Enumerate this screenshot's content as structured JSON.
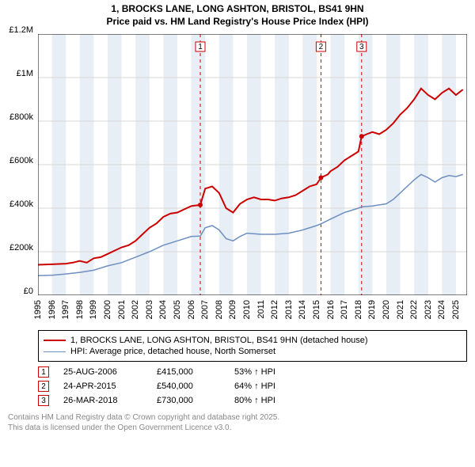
{
  "title": {
    "line1": "1, BROCKS LANE, LONG ASHTON, BRISTOL, BS41 9HN",
    "line2": "Price paid vs. HM Land Registry's House Price Index (HPI)",
    "fontsize": 12,
    "weight": "bold"
  },
  "chart": {
    "type": "line",
    "background_color": "#ffffff",
    "grid_color": "#d7d7d7",
    "grid_width": 1,
    "xlim": [
      1995,
      2025.8
    ],
    "ylim": [
      0,
      1200000
    ],
    "y_ticks": [
      {
        "v": 0,
        "label": "£0"
      },
      {
        "v": 200000,
        "label": "£200k"
      },
      {
        "v": 400000,
        "label": "£400k"
      },
      {
        "v": 600000,
        "label": "£600k"
      },
      {
        "v": 800000,
        "label": "£800k"
      },
      {
        "v": 1000000,
        "label": "£1M"
      },
      {
        "v": 1200000,
        "label": "£1.2M"
      }
    ],
    "x_ticks": [
      1995,
      1996,
      1997,
      1998,
      1999,
      2000,
      2001,
      2002,
      2003,
      2004,
      2005,
      2006,
      2007,
      2008,
      2009,
      2010,
      2011,
      2012,
      2013,
      2014,
      2015,
      2016,
      2017,
      2018,
      2019,
      2020,
      2021,
      2022,
      2023,
      2024,
      2025
    ],
    "x_tick_fontsize": 11,
    "y_tick_fontsize": 11,
    "shaded_bands": {
      "color": "#e8eef5",
      "ranges": [
        [
          1996,
          1997
        ],
        [
          1998,
          1999
        ],
        [
          2000,
          2001
        ],
        [
          2002,
          2003
        ],
        [
          2004,
          2005
        ],
        [
          2006,
          2007
        ],
        [
          2008,
          2009
        ],
        [
          2010,
          2011
        ],
        [
          2012,
          2013
        ],
        [
          2014,
          2015
        ],
        [
          2016,
          2017
        ],
        [
          2018,
          2019
        ],
        [
          2020,
          2021
        ],
        [
          2022,
          2023
        ],
        [
          2024,
          2025
        ]
      ]
    },
    "event_lines": {
      "color": "#cc0000",
      "dash": "4,4",
      "width": 1,
      "events": [
        {
          "x": 2006.65,
          "label": "1"
        },
        {
          "x": 2015.31,
          "label": "2"
        },
        {
          "x": 2018.23,
          "label": "3"
        }
      ],
      "label_box": {
        "border": "#cc0000",
        "bg": "#ffffff",
        "text": "#000000",
        "size": 12
      }
    },
    "series": [
      {
        "name": "price_paid",
        "label": "1, BROCKS LANE, LONG ASHTON, BRISTOL, BS41 9HN (detached house)",
        "color": "#cc0000",
        "width": 2,
        "data": [
          [
            1995,
            140000
          ],
          [
            1996,
            142000
          ],
          [
            1997,
            145000
          ],
          [
            1997.5,
            150000
          ],
          [
            1998,
            158000
          ],
          [
            1998.5,
            150000
          ],
          [
            1999,
            170000
          ],
          [
            1999.5,
            175000
          ],
          [
            2000,
            190000
          ],
          [
            2000.5,
            205000
          ],
          [
            2001,
            220000
          ],
          [
            2001.5,
            230000
          ],
          [
            2002,
            250000
          ],
          [
            2002.5,
            280000
          ],
          [
            2003,
            310000
          ],
          [
            2003.5,
            330000
          ],
          [
            2004,
            360000
          ],
          [
            2004.5,
            375000
          ],
          [
            2005,
            380000
          ],
          [
            2005.5,
            395000
          ],
          [
            2006,
            410000
          ],
          [
            2006.65,
            415000
          ],
          [
            2007,
            490000
          ],
          [
            2007.5,
            500000
          ],
          [
            2008,
            470000
          ],
          [
            2008.5,
            400000
          ],
          [
            2009,
            380000
          ],
          [
            2009.5,
            420000
          ],
          [
            2010,
            440000
          ],
          [
            2010.5,
            450000
          ],
          [
            2011,
            440000
          ],
          [
            2011.5,
            440000
          ],
          [
            2012,
            435000
          ],
          [
            2012.5,
            445000
          ],
          [
            2013,
            450000
          ],
          [
            2013.5,
            460000
          ],
          [
            2014,
            480000
          ],
          [
            2014.5,
            500000
          ],
          [
            2015,
            510000
          ],
          [
            2015.31,
            540000
          ],
          [
            2015.8,
            555000
          ],
          [
            2016,
            570000
          ],
          [
            2016.5,
            590000
          ],
          [
            2017,
            620000
          ],
          [
            2017.5,
            640000
          ],
          [
            2018,
            660000
          ],
          [
            2018.23,
            730000
          ],
          [
            2018.6,
            740000
          ],
          [
            2019,
            750000
          ],
          [
            2019.5,
            740000
          ],
          [
            2020,
            760000
          ],
          [
            2020.5,
            790000
          ],
          [
            2021,
            830000
          ],
          [
            2021.5,
            860000
          ],
          [
            2022,
            900000
          ],
          [
            2022.5,
            950000
          ],
          [
            2023,
            920000
          ],
          [
            2023.5,
            900000
          ],
          [
            2024,
            930000
          ],
          [
            2024.5,
            950000
          ],
          [
            2025,
            920000
          ],
          [
            2025.5,
            945000
          ]
        ]
      },
      {
        "name": "hpi",
        "label": "HPI: Average price, detached house, North Somerset",
        "color": "#6e8fc1",
        "width": 1.5,
        "data": [
          [
            1995,
            90000
          ],
          [
            1996,
            92000
          ],
          [
            1997,
            98000
          ],
          [
            1998,
            105000
          ],
          [
            1999,
            115000
          ],
          [
            2000,
            135000
          ],
          [
            2001,
            150000
          ],
          [
            2002,
            175000
          ],
          [
            2003,
            200000
          ],
          [
            2004,
            230000
          ],
          [
            2005,
            250000
          ],
          [
            2006,
            270000
          ],
          [
            2006.65,
            272000
          ],
          [
            2007,
            310000
          ],
          [
            2007.5,
            320000
          ],
          [
            2008,
            300000
          ],
          [
            2008.5,
            260000
          ],
          [
            2009,
            250000
          ],
          [
            2009.5,
            270000
          ],
          [
            2010,
            285000
          ],
          [
            2011,
            280000
          ],
          [
            2012,
            280000
          ],
          [
            2013,
            285000
          ],
          [
            2014,
            300000
          ],
          [
            2015,
            320000
          ],
          [
            2015.31,
            328000
          ],
          [
            2016,
            350000
          ],
          [
            2017,
            380000
          ],
          [
            2018,
            400000
          ],
          [
            2018.23,
            406000
          ],
          [
            2019,
            410000
          ],
          [
            2020,
            420000
          ],
          [
            2020.5,
            440000
          ],
          [
            2021,
            470000
          ],
          [
            2021.5,
            500000
          ],
          [
            2022,
            530000
          ],
          [
            2022.5,
            555000
          ],
          [
            2023,
            540000
          ],
          [
            2023.5,
            520000
          ],
          [
            2024,
            540000
          ],
          [
            2024.5,
            550000
          ],
          [
            2025,
            545000
          ],
          [
            2025.5,
            555000
          ]
        ]
      }
    ]
  },
  "legend": {
    "border_color": "#000000",
    "fontsize": 11
  },
  "marker_table": {
    "fontsize": 11,
    "arrow": "↑",
    "suffix": "HPI",
    "box_border": "#cc0000",
    "rows": [
      {
        "n": "1",
        "date": "25-AUG-2006",
        "price": "£415,000",
        "diff": "53% ↑ HPI"
      },
      {
        "n": "2",
        "date": "24-APR-2015",
        "price": "£540,000",
        "diff": "64% ↑ HPI"
      },
      {
        "n": "3",
        "date": "26-MAR-2018",
        "price": "£730,000",
        "diff": "80% ↑ HPI"
      }
    ]
  },
  "footer": {
    "line1": "Contains HM Land Registry data © Crown copyright and database right 2025.",
    "line2": "This data is licensed under the Open Government Licence v3.0.",
    "color": "#888888",
    "fontsize": 10
  }
}
